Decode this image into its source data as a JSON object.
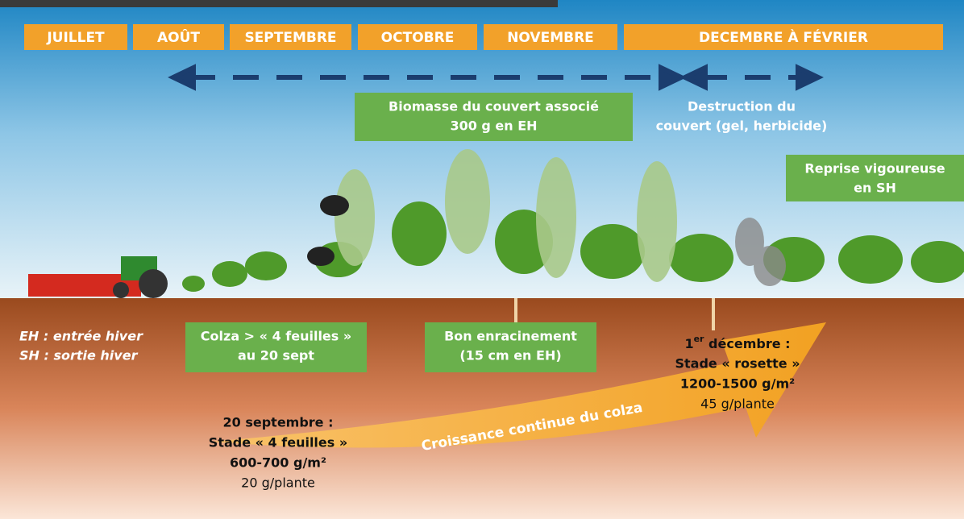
{
  "months": [
    "JUILLET",
    "AOÛT",
    "SEPTEMBRE",
    "OCTOBRE",
    "NOVEMBRE",
    "DECEMBRE À FÉVRIER"
  ],
  "boxes": {
    "biomasse": [
      "Biomasse du couvert associé",
      "300 g en EH"
    ],
    "destruction": [
      "Destruction du",
      "couvert (gel, herbicide)"
    ],
    "reprise": [
      "Reprise vigoureuse",
      "en SH"
    ],
    "colza": [
      "Colza > « 4 feuilles »",
      "au 20 sept"
    ],
    "enracinement": [
      "Bon enracinement",
      "(15 cm en EH)"
    ]
  },
  "legend": [
    "EH : entrée hiver",
    "SH : sortie hiver"
  ],
  "arrow_label": "Croissance continue du colza",
  "september": [
    "20 septembre :",
    "Stade « 4 feuilles »",
    "600-700 g/m²",
    "20 g/plante"
  ],
  "december": {
    "day": "1",
    "sup": "er",
    "rest": " décembre :",
    "lines": [
      "Stade « rosette »",
      "1200-1500 g/m²",
      "45 g/plante"
    ]
  }
}
